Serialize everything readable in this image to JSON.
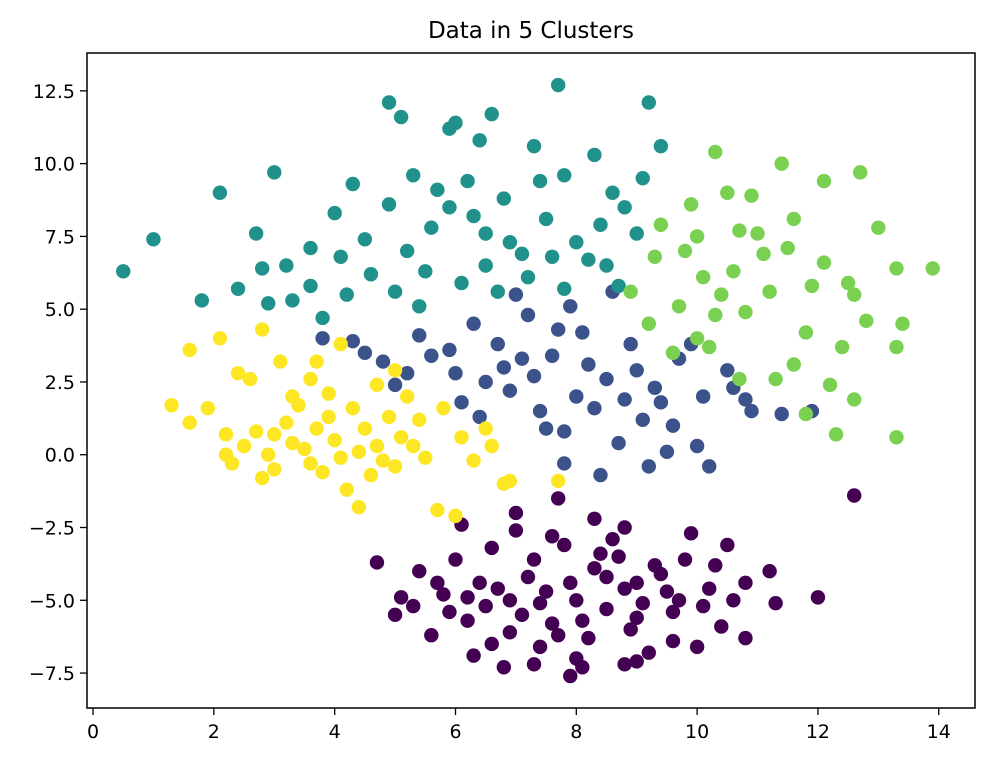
{
  "chart_data": {
    "type": "scatter",
    "title": "Data in 5 Clusters",
    "xlabel": "",
    "ylabel": "",
    "xlim": [
      -0.1,
      14.6
    ],
    "ylim": [
      -8.7,
      13.8
    ],
    "xticks": [
      0,
      2,
      4,
      6,
      8,
      10,
      12,
      14
    ],
    "yticks": [
      -7.5,
      -5.0,
      -2.5,
      0.0,
      2.5,
      5.0,
      7.5,
      10.0,
      12.5
    ],
    "xtick_labels": [
      "0",
      "2",
      "4",
      "6",
      "8",
      "10",
      "12",
      "14"
    ],
    "ytick_labels": [
      "−7.5",
      "−5.0",
      "−2.5",
      "0.0",
      "2.5",
      "5.0",
      "7.5",
      "10.0",
      "12.5"
    ],
    "grid": false,
    "legend": "none",
    "series": [
      {
        "color": "#440154",
        "points": [
          [
            8.0,
            -5.0
          ],
          [
            7.2,
            -4.2
          ],
          [
            8.8,
            -4.6
          ],
          [
            7.6,
            -5.8
          ],
          [
            8.4,
            -3.4
          ],
          [
            9.0,
            -5.6
          ],
          [
            6.9,
            -5.0
          ],
          [
            8.2,
            -6.3
          ],
          [
            7.8,
            -3.1
          ],
          [
            9.4,
            -4.1
          ],
          [
            6.4,
            -4.4
          ],
          [
            7.4,
            -6.6
          ],
          [
            8.6,
            -2.9
          ],
          [
            9.6,
            -5.4
          ],
          [
            6.2,
            -5.7
          ],
          [
            8.0,
            -7.0
          ],
          [
            7.0,
            -2.6
          ],
          [
            9.8,
            -3.6
          ],
          [
            5.8,
            -4.8
          ],
          [
            9.2,
            -6.8
          ],
          [
            6.6,
            -3.2
          ],
          [
            10.2,
            -4.6
          ],
          [
            5.6,
            -6.2
          ],
          [
            8.8,
            -2.5
          ],
          [
            7.3,
            -7.2
          ],
          [
            10.4,
            -5.9
          ],
          [
            6.0,
            -3.6
          ],
          [
            9.9,
            -2.7
          ],
          [
            5.3,
            -5.2
          ],
          [
            10.8,
            -4.4
          ],
          [
            6.3,
            -6.9
          ],
          [
            7.9,
            -7.6
          ],
          [
            10.0,
            -6.6
          ],
          [
            5.4,
            -4.0
          ],
          [
            10.5,
            -3.1
          ],
          [
            7.0,
            -2.0
          ],
          [
            8.3,
            -2.2
          ],
          [
            9.0,
            -7.1
          ],
          [
            11.3,
            -5.1
          ],
          [
            5.1,
            -4.9
          ],
          [
            4.7,
            -3.7
          ],
          [
            10.8,
            -6.3
          ],
          [
            12.0,
            -4.9
          ],
          [
            12.6,
            -1.4
          ],
          [
            7.7,
            -1.5
          ],
          [
            6.1,
            -2.4
          ],
          [
            6.8,
            -7.3
          ],
          [
            5.0,
            -5.5
          ],
          [
            11.2,
            -4.0
          ],
          [
            8.5,
            -4.2
          ],
          [
            7.5,
            -4.7
          ],
          [
            9.1,
            -5.1
          ],
          [
            8.1,
            -5.7
          ],
          [
            7.1,
            -5.5
          ],
          [
            9.5,
            -4.7
          ],
          [
            6.7,
            -4.6
          ],
          [
            8.3,
            -3.9
          ],
          [
            7.7,
            -6.2
          ],
          [
            8.9,
            -6.0
          ],
          [
            6.5,
            -5.2
          ],
          [
            9.7,
            -5.0
          ],
          [
            7.3,
            -3.6
          ],
          [
            8.7,
            -3.5
          ],
          [
            6.9,
            -6.1
          ],
          [
            9.3,
            -3.8
          ],
          [
            5.9,
            -5.4
          ],
          [
            10.1,
            -5.2
          ],
          [
            7.9,
            -4.4
          ],
          [
            8.5,
            -5.3
          ],
          [
            7.4,
            -5.1
          ],
          [
            9.0,
            -4.4
          ],
          [
            6.2,
            -4.9
          ],
          [
            10.6,
            -5.0
          ],
          [
            7.6,
            -2.8
          ],
          [
            8.1,
            -7.3
          ],
          [
            5.7,
            -4.4
          ],
          [
            10.3,
            -3.8
          ],
          [
            6.6,
            -6.5
          ],
          [
            9.6,
            -6.4
          ],
          [
            8.8,
            -7.2
          ]
        ]
      },
      {
        "color": "#3b528b",
        "points": [
          [
            4.3,
            3.9
          ],
          [
            4.8,
            3.2
          ],
          [
            5.4,
            4.1
          ],
          [
            5.9,
            3.6
          ],
          [
            6.3,
            4.5
          ],
          [
            6.8,
            3.0
          ],
          [
            7.2,
            4.8
          ],
          [
            7.6,
            3.4
          ],
          [
            8.1,
            4.2
          ],
          [
            8.5,
            2.6
          ],
          [
            8.9,
            3.8
          ],
          [
            9.3,
            2.3
          ],
          [
            9.7,
            3.3
          ],
          [
            10.1,
            2.0
          ],
          [
            10.5,
            2.9
          ],
          [
            10.9,
            1.5
          ],
          [
            11.4,
            1.4
          ],
          [
            11.9,
            1.5
          ],
          [
            6.4,
            1.3
          ],
          [
            6.9,
            2.2
          ],
          [
            7.4,
            1.5
          ],
          [
            7.8,
            0.8
          ],
          [
            8.3,
            1.6
          ],
          [
            8.7,
            0.4
          ],
          [
            9.1,
            1.2
          ],
          [
            9.5,
            0.1
          ],
          [
            10.0,
            0.3
          ],
          [
            10.2,
            -0.4
          ],
          [
            9.2,
            -0.4
          ],
          [
            8.4,
            -0.7
          ],
          [
            7.5,
            0.9
          ],
          [
            5.6,
            3.4
          ],
          [
            5.0,
            2.4
          ],
          [
            4.5,
            3.5
          ],
          [
            3.8,
            4.0
          ],
          [
            7.0,
            5.5
          ],
          [
            7.9,
            5.1
          ],
          [
            8.6,
            5.6
          ],
          [
            6.0,
            2.8
          ],
          [
            7.3,
            2.7
          ],
          [
            8.0,
            2.0
          ],
          [
            9.4,
            1.8
          ],
          [
            10.6,
            2.3
          ],
          [
            6.7,
            3.8
          ],
          [
            5.2,
            2.8
          ],
          [
            8.2,
            3.1
          ],
          [
            9.0,
            2.9
          ],
          [
            7.7,
            4.3
          ],
          [
            6.5,
            2.5
          ],
          [
            7.1,
            3.3
          ],
          [
            9.6,
            1.0
          ],
          [
            8.8,
            1.9
          ],
          [
            7.8,
            -0.3
          ],
          [
            6.1,
            1.8
          ],
          [
            10.8,
            1.9
          ],
          [
            9.9,
            3.8
          ]
        ]
      },
      {
        "color": "#21918c",
        "points": [
          [
            0.5,
            6.3
          ],
          [
            1.0,
            7.4
          ],
          [
            1.8,
            5.3
          ],
          [
            2.1,
            9.0
          ],
          [
            2.4,
            5.7
          ],
          [
            2.8,
            6.4
          ],
          [
            3.0,
            9.7
          ],
          [
            2.7,
            7.6
          ],
          [
            3.3,
            5.3
          ],
          [
            3.6,
            7.1
          ],
          [
            4.0,
            8.3
          ],
          [
            4.3,
            9.3
          ],
          [
            4.6,
            6.2
          ],
          [
            4.9,
            8.6
          ],
          [
            5.1,
            11.6
          ],
          [
            4.9,
            12.1
          ],
          [
            5.3,
            9.6
          ],
          [
            5.6,
            7.8
          ],
          [
            5.9,
            8.5
          ],
          [
            6.2,
            9.4
          ],
          [
            6.5,
            7.6
          ],
          [
            6.8,
            8.8
          ],
          [
            7.1,
            6.9
          ],
          [
            7.3,
            10.6
          ],
          [
            7.7,
            12.7
          ],
          [
            7.5,
            8.1
          ],
          [
            7.8,
            9.6
          ],
          [
            8.0,
            7.3
          ],
          [
            8.3,
            10.3
          ],
          [
            8.5,
            6.5
          ],
          [
            8.8,
            8.5
          ],
          [
            9.0,
            7.6
          ],
          [
            9.2,
            12.1
          ],
          [
            9.1,
            9.5
          ],
          [
            9.4,
            10.6
          ],
          [
            8.7,
            5.8
          ],
          [
            6.0,
            11.4
          ],
          [
            5.9,
            11.2
          ],
          [
            6.6,
            11.7
          ],
          [
            6.4,
            10.8
          ],
          [
            5.0,
            5.6
          ],
          [
            5.5,
            6.3
          ],
          [
            6.1,
            5.9
          ],
          [
            6.7,
            5.6
          ],
          [
            7.2,
            6.1
          ],
          [
            7.8,
            5.7
          ],
          [
            8.2,
            6.7
          ],
          [
            3.6,
            5.8
          ],
          [
            4.2,
            5.5
          ],
          [
            3.8,
            4.7
          ],
          [
            3.2,
            6.5
          ],
          [
            2.9,
            5.2
          ],
          [
            4.5,
            7.4
          ],
          [
            5.7,
            9.1
          ],
          [
            6.3,
            8.2
          ],
          [
            7.4,
            9.4
          ],
          [
            8.6,
            9.0
          ],
          [
            4.1,
            6.8
          ],
          [
            5.2,
            7.0
          ],
          [
            6.9,
            7.3
          ],
          [
            7.6,
            6.8
          ],
          [
            8.4,
            7.9
          ],
          [
            5.4,
            5.1
          ],
          [
            6.5,
            6.5
          ]
        ]
      },
      {
        "color": "#7ad151",
        "points": [
          [
            8.9,
            5.6
          ],
          [
            9.3,
            6.8
          ],
          [
            9.7,
            5.1
          ],
          [
            10.0,
            7.5
          ],
          [
            10.3,
            4.8
          ],
          [
            10.6,
            6.3
          ],
          [
            10.9,
            8.9
          ],
          [
            11.2,
            5.6
          ],
          [
            11.5,
            7.1
          ],
          [
            11.8,
            4.2
          ],
          [
            12.1,
            6.6
          ],
          [
            12.4,
            3.7
          ],
          [
            12.6,
            5.5
          ],
          [
            13.0,
            7.8
          ],
          [
            13.3,
            6.4
          ],
          [
            13.4,
            4.5
          ],
          [
            13.9,
            6.4
          ],
          [
            13.3,
            0.6
          ],
          [
            12.7,
            9.7
          ],
          [
            12.1,
            9.4
          ],
          [
            11.4,
            10.0
          ],
          [
            10.3,
            10.4
          ],
          [
            11.6,
            3.1
          ],
          [
            12.2,
            2.4
          ],
          [
            12.6,
            1.9
          ],
          [
            12.3,
            0.7
          ],
          [
            11.8,
            1.4
          ],
          [
            11.3,
            2.6
          ],
          [
            10.7,
            2.6
          ],
          [
            10.0,
            4.0
          ],
          [
            9.6,
            3.5
          ],
          [
            10.5,
            9.0
          ],
          [
            9.9,
            8.6
          ],
          [
            9.4,
            7.9
          ],
          [
            11.0,
            7.6
          ],
          [
            10.1,
            6.1
          ],
          [
            10.8,
            4.9
          ],
          [
            11.9,
            5.8
          ],
          [
            12.8,
            4.6
          ],
          [
            9.2,
            4.5
          ],
          [
            10.4,
            5.5
          ],
          [
            11.1,
            6.9
          ],
          [
            12.5,
            5.9
          ],
          [
            9.8,
            7.0
          ],
          [
            10.7,
            7.7
          ],
          [
            13.3,
            3.7
          ],
          [
            11.6,
            8.1
          ],
          [
            10.2,
            3.7
          ]
        ]
      },
      {
        "color": "#fde725",
        "points": [
          [
            4.0,
            0.5
          ],
          [
            3.5,
            0.2
          ],
          [
            4.5,
            0.9
          ],
          [
            3.2,
            1.1
          ],
          [
            4.8,
            -0.2
          ],
          [
            2.9,
            0.0
          ],
          [
            3.8,
            -0.6
          ],
          [
            4.3,
            1.6
          ],
          [
            5.1,
            0.6
          ],
          [
            2.7,
            0.8
          ],
          [
            3.4,
            1.7
          ],
          [
            4.6,
            -0.7
          ],
          [
            3.0,
            -0.5
          ],
          [
            5.4,
            1.2
          ],
          [
            2.5,
            0.3
          ],
          [
            3.9,
            2.1
          ],
          [
            5.5,
            -0.1
          ],
          [
            2.3,
            -0.3
          ],
          [
            4.2,
            -1.2
          ],
          [
            3.6,
            2.6
          ],
          [
            5.2,
            2.0
          ],
          [
            2.6,
            2.6
          ],
          [
            3.1,
            3.2
          ],
          [
            1.6,
            3.6
          ],
          [
            2.1,
            4.0
          ],
          [
            2.8,
            4.3
          ],
          [
            2.4,
            2.8
          ],
          [
            1.9,
            1.6
          ],
          [
            1.3,
            1.7
          ],
          [
            1.6,
            1.1
          ],
          [
            2.2,
            0.7
          ],
          [
            2.2,
            0.0
          ],
          [
            4.4,
            -1.8
          ],
          [
            5.7,
            -1.9
          ],
          [
            6.0,
            -2.1
          ],
          [
            6.3,
            -0.2
          ],
          [
            6.1,
            0.6
          ],
          [
            6.6,
            0.3
          ],
          [
            6.9,
            -0.9
          ],
          [
            7.7,
            -0.9
          ],
          [
            5.8,
            1.6
          ],
          [
            4.1,
            3.8
          ],
          [
            3.7,
            3.2
          ],
          [
            5.0,
            2.9
          ],
          [
            4.7,
            2.4
          ],
          [
            6.5,
            0.9
          ],
          [
            6.8,
            -1.0
          ],
          [
            3.3,
            2.0
          ],
          [
            4.9,
            1.3
          ],
          [
            3.7,
            0.9
          ],
          [
            4.1,
            -0.1
          ],
          [
            3.3,
            0.4
          ],
          [
            4.7,
            0.3
          ],
          [
            3.0,
            0.7
          ],
          [
            5.3,
            0.3
          ],
          [
            2.8,
            -0.8
          ],
          [
            3.6,
            -0.3
          ],
          [
            4.4,
            0.1
          ],
          [
            3.9,
            1.3
          ],
          [
            5.0,
            -0.4
          ]
        ]
      }
    ]
  }
}
